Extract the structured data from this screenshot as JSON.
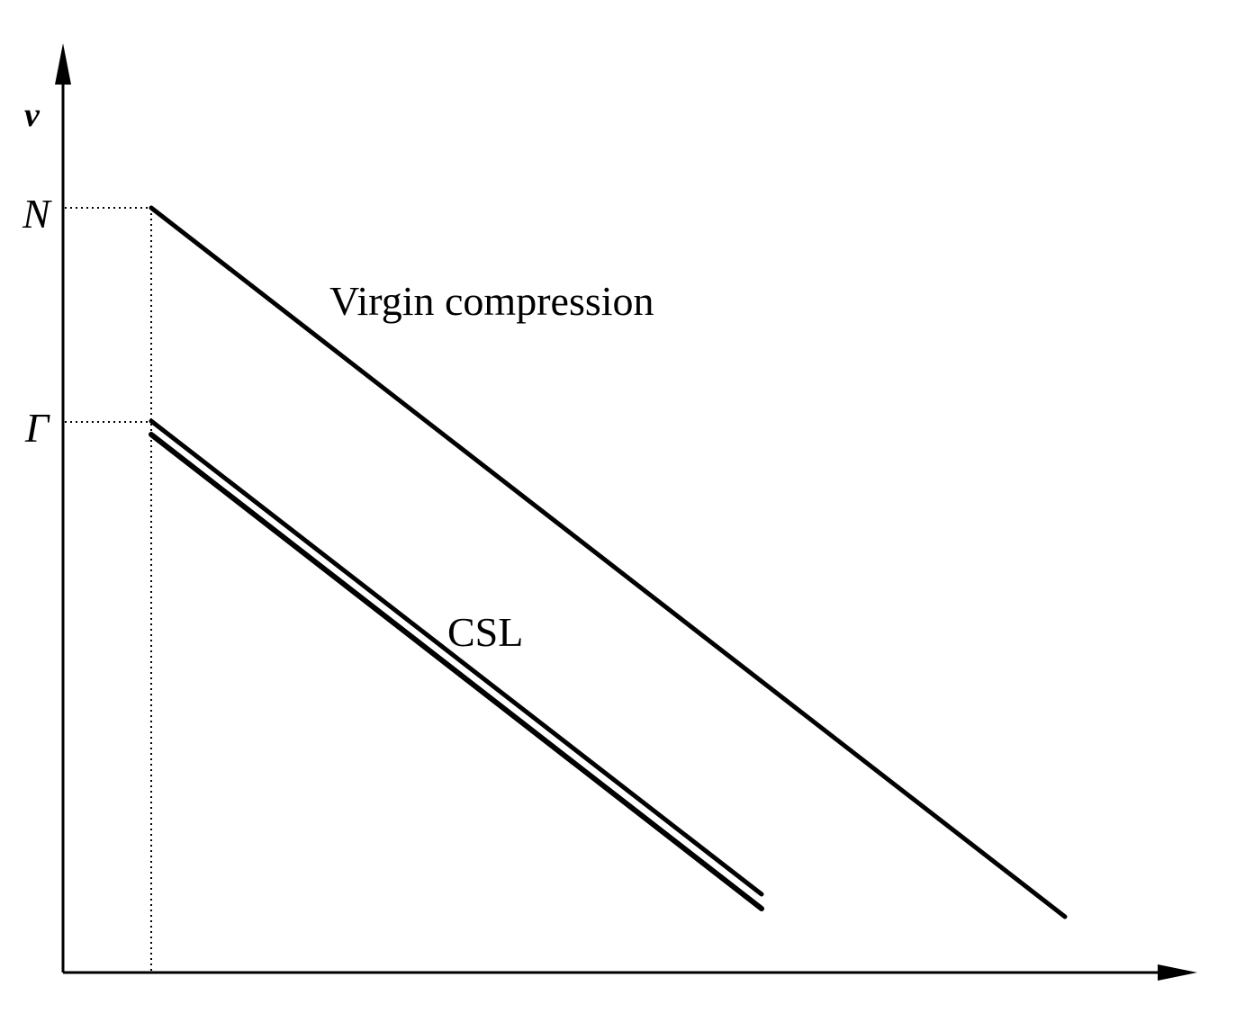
{
  "axes": {
    "y_label": "v"
  },
  "reference_levels": {
    "N_label": "N",
    "Gamma_label": "Γ"
  },
  "lines": {
    "virgin_compression_label": "Virgin compression",
    "csl_label": "CSL"
  },
  "colors": {
    "stroke": "#000000",
    "background": "#ffffff"
  }
}
